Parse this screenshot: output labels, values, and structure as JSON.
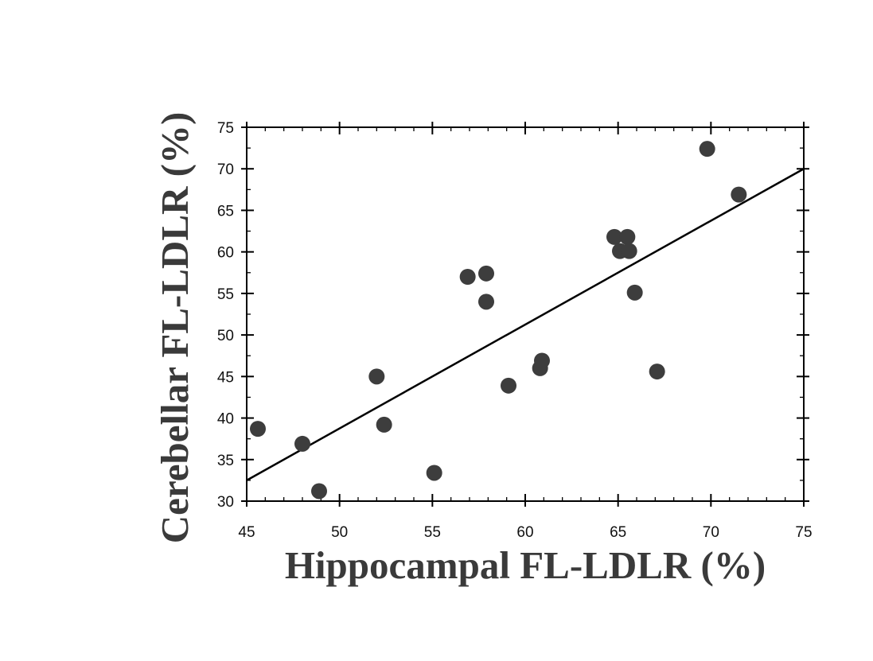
{
  "chart_data": {
    "type": "scatter",
    "title": "",
    "xlabel": "Hippocampal FL-LDLR (%)",
    "ylabel": "Cerebellar FL-LDLR (%)",
    "xlim": [
      45,
      75
    ],
    "ylim": [
      30,
      75
    ],
    "x_ticks": [
      45,
      50,
      55,
      60,
      65,
      70,
      75
    ],
    "y_ticks": [
      30,
      35,
      40,
      45,
      50,
      55,
      60,
      65,
      70,
      75
    ],
    "grid": false,
    "legend": "none",
    "marker_color": "#3d3d3d",
    "line_color": "#000000",
    "series": [
      {
        "points": [
          {
            "x": 45.6,
            "y": 38.7
          },
          {
            "x": 48.0,
            "y": 36.9
          },
          {
            "x": 48.9,
            "y": 31.2
          },
          {
            "x": 52.0,
            "y": 45.0
          },
          {
            "x": 52.4,
            "y": 39.2
          },
          {
            "x": 55.1,
            "y": 33.4
          },
          {
            "x": 56.9,
            "y": 57.0
          },
          {
            "x": 57.9,
            "y": 57.4
          },
          {
            "x": 57.9,
            "y": 54.0
          },
          {
            "x": 59.1,
            "y": 43.9
          },
          {
            "x": 60.8,
            "y": 46.0
          },
          {
            "x": 60.9,
            "y": 46.9
          },
          {
            "x": 64.8,
            "y": 61.8
          },
          {
            "x": 65.5,
            "y": 61.8
          },
          {
            "x": 65.1,
            "y": 60.1
          },
          {
            "x": 65.6,
            "y": 60.1
          },
          {
            "x": 65.9,
            "y": 55.1
          },
          {
            "x": 67.1,
            "y": 45.6
          },
          {
            "x": 69.8,
            "y": 72.4
          },
          {
            "x": 71.5,
            "y": 66.9
          }
        ]
      }
    ],
    "trendline": {
      "x": [
        45,
        75
      ],
      "y": [
        32.5,
        70.0
      ]
    }
  }
}
